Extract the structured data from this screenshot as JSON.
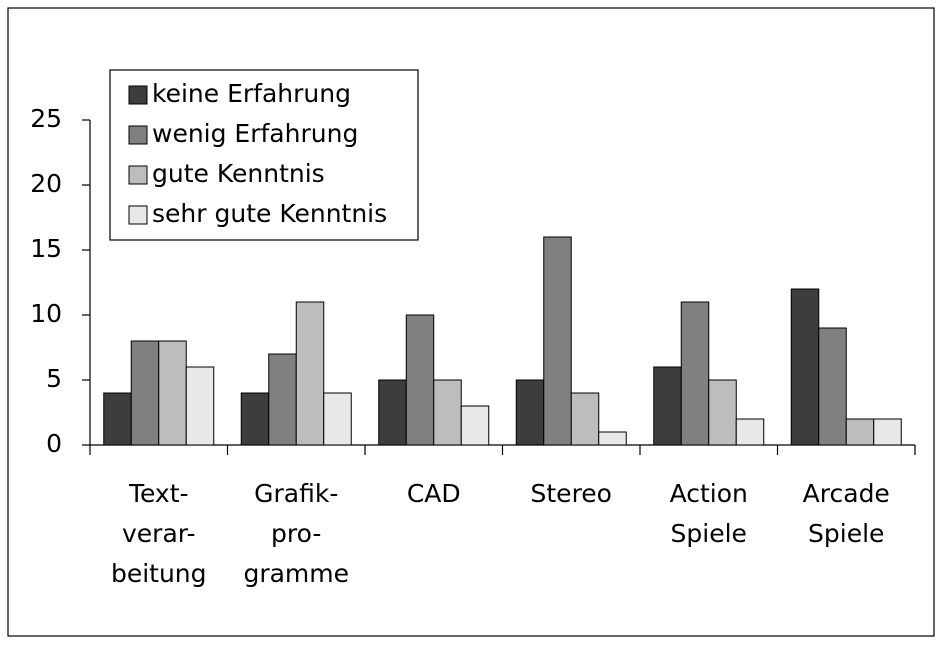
{
  "chart_data": {
    "type": "bar",
    "categories": [
      [
        "Text-",
        "verar-",
        "beitung"
      ],
      [
        "Grafik-",
        "pro-",
        "gramme"
      ],
      [
        "CAD"
      ],
      [
        "Stereo"
      ],
      [
        "Action",
        "Spiele"
      ],
      [
        "Arcade",
        "Spiele"
      ]
    ],
    "series": [
      {
        "name": "keine Erfahrung",
        "color": "#3d3d3d",
        "values": [
          4,
          4,
          5,
          5,
          6,
          12
        ]
      },
      {
        "name": "wenig Erfahrung",
        "color": "#808080",
        "values": [
          8,
          7,
          10,
          16,
          11,
          9
        ]
      },
      {
        "name": "gute Kenntnis",
        "color": "#bdbdbd",
        "values": [
          8,
          11,
          5,
          4,
          5,
          2
        ]
      },
      {
        "name": "sehr gute Kenntnis",
        "color": "#e8e8e8",
        "values": [
          6,
          4,
          3,
          1,
          2,
          2
        ]
      }
    ],
    "ylim": [
      0,
      25
    ],
    "yticks": [
      0,
      5,
      10,
      15,
      20,
      25
    ],
    "grid": false,
    "legend": "top-left"
  }
}
